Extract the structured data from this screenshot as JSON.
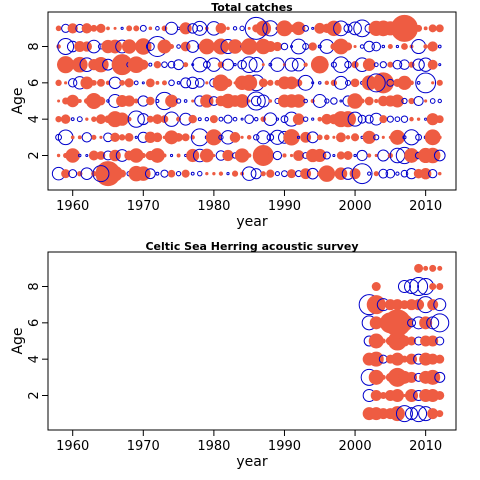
{
  "chart_data": [
    {
      "type": "scatter",
      "title": "Total catches",
      "xlabel": "year",
      "ylabel": "Age",
      "xlim": [
        1956.5,
        2014.3
      ],
      "ylim": [
        0.1,
        9.9
      ],
      "xticks": [
        1960,
        1970,
        1980,
        1990,
        2000,
        2010
      ],
      "yticks": [
        2,
        4,
        6,
        8
      ],
      "encoding": "bubble area = residual magnitude; filled = positive residual, open = negative residual",
      "positive_color": "#EE5C42",
      "negative_color": "#0000CC",
      "years": [
        1958,
        2012
      ],
      "ages": [
        1,
        9
      ],
      "pattern": "full residual grid for every year and age"
    },
    {
      "type": "scatter",
      "title": "Celtic Sea Herring acoustic survey",
      "xlabel": "year",
      "ylabel": "Age",
      "xlim": [
        1956.5,
        2014.3
      ],
      "ylim": [
        0.1,
        9.9
      ],
      "xticks": [
        1960,
        1970,
        1980,
        1990,
        2000,
        2010
      ],
      "yticks": [
        2,
        4,
        6,
        8
      ],
      "encoding": "bubble area = residual magnitude; filled = positive residual, open = negative residual",
      "positive_color": "#EE5C42",
      "negative_color": "#0000CC",
      "points": [
        {
          "year": 2002,
          "age": 1,
          "r": 6,
          "sign": "+"
        },
        {
          "year": 2003,
          "age": 1,
          "r": 6,
          "sign": "+"
        },
        {
          "year": 2004,
          "age": 1,
          "r": 5,
          "sign": "+"
        },
        {
          "year": 2005,
          "age": 1,
          "r": 5,
          "sign": "+"
        },
        {
          "year": 2006,
          "age": 1,
          "r": 7,
          "sign": "+"
        },
        {
          "year": 2007,
          "age": 1,
          "r": 8,
          "sign": "-"
        },
        {
          "year": 2008,
          "age": 1,
          "r": 6,
          "sign": "-"
        },
        {
          "year": 2009,
          "age": 1,
          "r": 8,
          "sign": "-"
        },
        {
          "year": 2010,
          "age": 1,
          "r": 7,
          "sign": "-"
        },
        {
          "year": 2011,
          "age": 1,
          "r": 5,
          "sign": "+"
        },
        {
          "year": 2012,
          "age": 1,
          "r": 3,
          "sign": "+"
        },
        {
          "year": 2002,
          "age": 2,
          "r": 6,
          "sign": "-"
        },
        {
          "year": 2003,
          "age": 2,
          "r": 5,
          "sign": "+"
        },
        {
          "year": 2004,
          "age": 2,
          "r": 3,
          "sign": "+"
        },
        {
          "year": 2005,
          "age": 2,
          "r": 5,
          "sign": "+"
        },
        {
          "year": 2006,
          "age": 2,
          "r": 6,
          "sign": "+"
        },
        {
          "year": 2007,
          "age": 2,
          "r": 1,
          "sign": "+"
        },
        {
          "year": 2008,
          "age": 2,
          "r": 6,
          "sign": "+"
        },
        {
          "year": 2009,
          "age": 2,
          "r": 5,
          "sign": "-"
        },
        {
          "year": 2010,
          "age": 2,
          "r": 6,
          "sign": "+"
        },
        {
          "year": 2011,
          "age": 2,
          "r": 6,
          "sign": "+"
        },
        {
          "year": 2012,
          "age": 2,
          "r": 4,
          "sign": "+"
        },
        {
          "year": 2002,
          "age": 3,
          "r": 8,
          "sign": "-"
        },
        {
          "year": 2003,
          "age": 3,
          "r": 7,
          "sign": "+"
        },
        {
          "year": 2004,
          "age": 3,
          "r": 2,
          "sign": "+"
        },
        {
          "year": 2005,
          "age": 3,
          "r": 4,
          "sign": "+"
        },
        {
          "year": 2006,
          "age": 3,
          "r": 9,
          "sign": "+"
        },
        {
          "year": 2007,
          "age": 3,
          "r": 6,
          "sign": "+"
        },
        {
          "year": 2008,
          "age": 3,
          "r": 5,
          "sign": "+"
        },
        {
          "year": 2009,
          "age": 3,
          "r": 4,
          "sign": "-"
        },
        {
          "year": 2010,
          "age": 3,
          "r": 6,
          "sign": "+"
        },
        {
          "year": 2011,
          "age": 3,
          "r": 7,
          "sign": "+"
        },
        {
          "year": 2012,
          "age": 3,
          "r": 5,
          "sign": "-"
        },
        {
          "year": 2002,
          "age": 4,
          "r": 6,
          "sign": "+"
        },
        {
          "year": 2003,
          "age": 4,
          "r": 7,
          "sign": "+"
        },
        {
          "year": 2004,
          "age": 4,
          "r": 4,
          "sign": "-"
        },
        {
          "year": 2005,
          "age": 4,
          "r": 4,
          "sign": "+"
        },
        {
          "year": 2006,
          "age": 4,
          "r": 6,
          "sign": "+"
        },
        {
          "year": 2007,
          "age": 4,
          "r": 3,
          "sign": "+"
        },
        {
          "year": 2008,
          "age": 4,
          "r": 5,
          "sign": "+"
        },
        {
          "year": 2009,
          "age": 4,
          "r": 5,
          "sign": "-"
        },
        {
          "year": 2010,
          "age": 4,
          "r": 6,
          "sign": "+"
        },
        {
          "year": 2011,
          "age": 4,
          "r": 5,
          "sign": "+"
        },
        {
          "year": 2012,
          "age": 4,
          "r": 4,
          "sign": "+"
        },
        {
          "year": 2002,
          "age": 5,
          "r": 5,
          "sign": "-"
        },
        {
          "year": 2003,
          "age": 5,
          "r": 7,
          "sign": "+"
        },
        {
          "year": 2004,
          "age": 5,
          "r": 2,
          "sign": "+"
        },
        {
          "year": 2005,
          "age": 5,
          "r": 4,
          "sign": "+"
        },
        {
          "year": 2006,
          "age": 5,
          "r": 9,
          "sign": "+"
        },
        {
          "year": 2007,
          "age": 5,
          "r": 5,
          "sign": "+"
        },
        {
          "year": 2008,
          "age": 5,
          "r": 4,
          "sign": "+"
        },
        {
          "year": 2009,
          "age": 5,
          "r": 4,
          "sign": "-"
        },
        {
          "year": 2010,
          "age": 5,
          "r": 5,
          "sign": "+"
        },
        {
          "year": 2011,
          "age": 5,
          "r": 5,
          "sign": "+"
        },
        {
          "year": 2012,
          "age": 5,
          "r": 4,
          "sign": "-"
        },
        {
          "year": 2002,
          "age": 6,
          "r": 7,
          "sign": "-"
        },
        {
          "year": 2003,
          "age": 6,
          "r": 6,
          "sign": "+"
        },
        {
          "year": 2004,
          "age": 6,
          "r": 3,
          "sign": "+"
        },
        {
          "year": 2005,
          "age": 6,
          "r": 10,
          "sign": "+"
        },
        {
          "year": 2006,
          "age": 6,
          "r": 13,
          "sign": "+"
        },
        {
          "year": 2007,
          "age": 6,
          "r": 8,
          "sign": "+"
        },
        {
          "year": 2008,
          "age": 6,
          "r": 4,
          "sign": "-"
        },
        {
          "year": 2009,
          "age": 6,
          "r": 6,
          "sign": "-"
        },
        {
          "year": 2010,
          "age": 6,
          "r": 6,
          "sign": "+"
        },
        {
          "year": 2011,
          "age": 6,
          "r": 6,
          "sign": "-"
        },
        {
          "year": 2012,
          "age": 6,
          "r": 9,
          "sign": "-"
        },
        {
          "year": 2002,
          "age": 7,
          "r": 10,
          "sign": "-"
        },
        {
          "year": 2003,
          "age": 7,
          "r": 9,
          "sign": "+"
        },
        {
          "year": 2004,
          "age": 7,
          "r": 6,
          "sign": "-"
        },
        {
          "year": 2005,
          "age": 7,
          "r": 5,
          "sign": "+"
        },
        {
          "year": 2006,
          "age": 7,
          "r": 5,
          "sign": "+"
        },
        {
          "year": 2007,
          "age": 7,
          "r": 4,
          "sign": "+"
        },
        {
          "year": 2008,
          "age": 7,
          "r": 5,
          "sign": "+"
        },
        {
          "year": 2009,
          "age": 7,
          "r": 5,
          "sign": "+"
        },
        {
          "year": 2010,
          "age": 7,
          "r": 8,
          "sign": "-"
        },
        {
          "year": 2011,
          "age": 7,
          "r": 5,
          "sign": "+"
        },
        {
          "year": 2012,
          "age": 7,
          "r": 6,
          "sign": "-"
        },
        {
          "year": 2003,
          "age": 8,
          "r": 4,
          "sign": "+"
        },
        {
          "year": 2007,
          "age": 8,
          "r": 6,
          "sign": "-"
        },
        {
          "year": 2008,
          "age": 8,
          "r": 7,
          "sign": "-"
        },
        {
          "year": 2009,
          "age": 8,
          "r": 9,
          "sign": "-"
        },
        {
          "year": 2010,
          "age": 8,
          "r": 8,
          "sign": "-"
        },
        {
          "year": 2011,
          "age": 8,
          "r": 3,
          "sign": "+"
        },
        {
          "year": 2012,
          "age": 8,
          "r": 3,
          "sign": "+"
        },
        {
          "year": 2009,
          "age": 9,
          "r": 4,
          "sign": "+"
        },
        {
          "year": 2010,
          "age": 9,
          "r": 2,
          "sign": "+"
        },
        {
          "year": 2011,
          "age": 9,
          "r": 3,
          "sign": "+"
        },
        {
          "year": 2012,
          "age": 9,
          "r": 2,
          "sign": "+"
        }
      ]
    }
  ]
}
